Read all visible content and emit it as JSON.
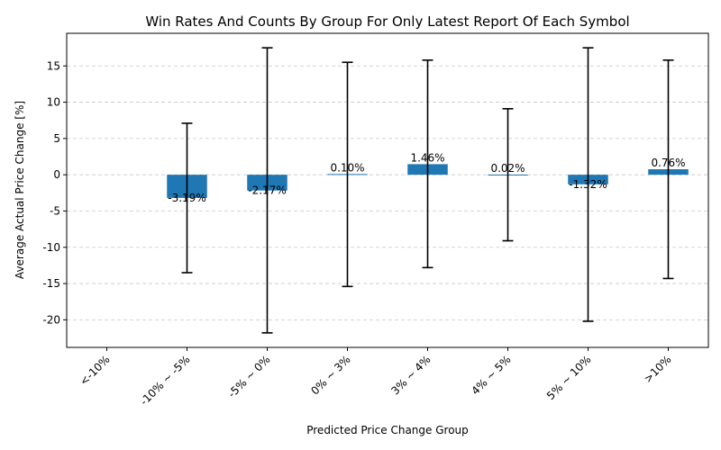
{
  "chart_data": {
    "type": "bar",
    "title": "Win Rates And Counts By Group For Only Latest Report Of Each Symbol",
    "xlabel": "Predicted Price Change Group",
    "ylabel": "Average Actual Price Change [%]",
    "categories": [
      "<-10%",
      "-10% ~ -5%",
      "-5% ~ 0%",
      "0% ~ 3%",
      "3% ~ 4%",
      "4% ~ 5%",
      "5% ~ 10%",
      ">10%"
    ],
    "values": [
      null,
      -3.19,
      -2.17,
      0.1,
      1.46,
      0.02,
      -1.32,
      0.76
    ],
    "value_labels": [
      "",
      "-3.19%",
      "-2.17%",
      "0.10%",
      "1.46%",
      "0.02%",
      "-1.32%",
      "0.76%"
    ],
    "error_low": [
      null,
      -13.5,
      -21.8,
      -15.4,
      -12.8,
      -9.1,
      -20.2,
      -14.3
    ],
    "error_high": [
      null,
      7.1,
      17.5,
      15.5,
      15.8,
      9.1,
      17.5,
      15.8
    ],
    "yticks": [
      -20,
      -15,
      -10,
      -5,
      0,
      5,
      10,
      15
    ],
    "ylim": [
      -23.8,
      19.5
    ],
    "grid": "y",
    "colors": {
      "bar": "#1f77b4",
      "error": "#000000"
    }
  }
}
